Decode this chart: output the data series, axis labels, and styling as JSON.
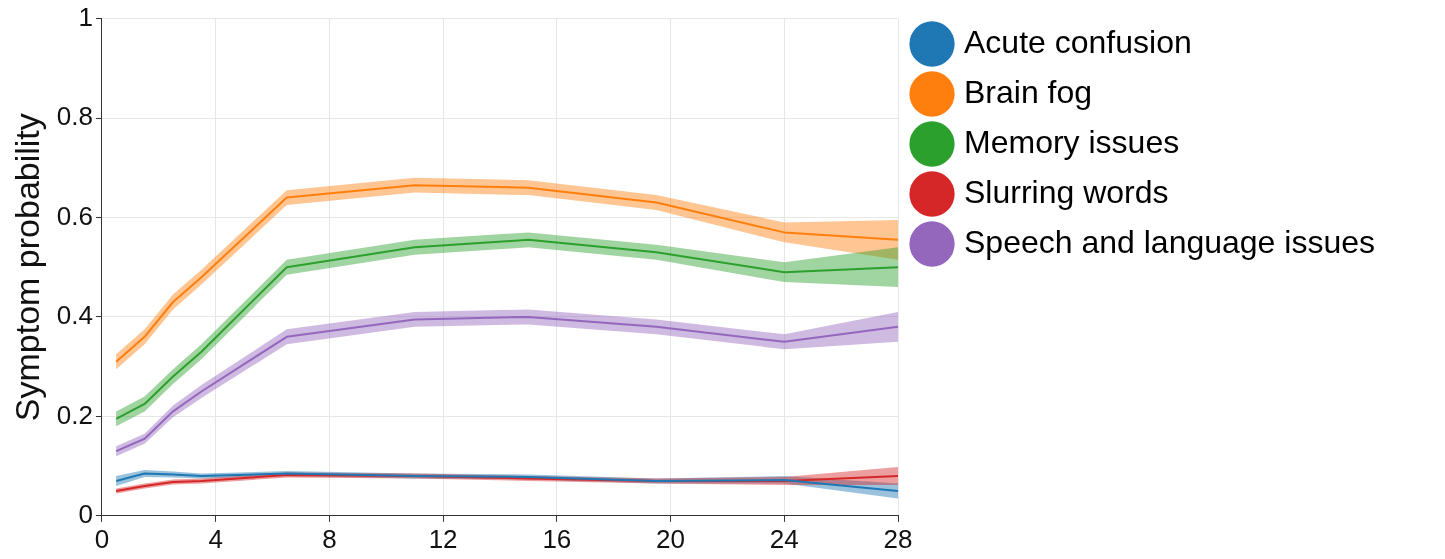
{
  "chart_data": {
    "type": "line",
    "ylabel": "Symptom probability",
    "x": [
      0.5,
      1.5,
      2.5,
      3.5,
      6.5,
      11,
      15,
      19.5,
      24,
      28
    ],
    "series": [
      {
        "name": "Acute confusion",
        "color": "#1f77b4",
        "values": [
          0.07,
          0.085,
          0.083,
          0.08,
          0.085,
          0.08,
          0.078,
          0.07,
          0.072,
          0.05
        ],
        "lower": [
          0.06,
          0.078,
          0.077,
          0.075,
          0.08,
          0.075,
          0.073,
          0.065,
          0.065,
          0.035
        ],
        "upper": [
          0.08,
          0.092,
          0.089,
          0.085,
          0.09,
          0.085,
          0.083,
          0.075,
          0.08,
          0.065
        ]
      },
      {
        "name": "Brain fog",
        "color": "#ff7f0e",
        "values": [
          0.31,
          0.36,
          0.43,
          0.48,
          0.64,
          0.665,
          0.66,
          0.63,
          0.57,
          0.555
        ],
        "lower": [
          0.295,
          0.345,
          0.415,
          0.465,
          0.625,
          0.65,
          0.645,
          0.615,
          0.55,
          0.515
        ],
        "upper": [
          0.325,
          0.375,
          0.445,
          0.495,
          0.655,
          0.68,
          0.675,
          0.645,
          0.59,
          0.595
        ]
      },
      {
        "name": "Memory issues",
        "color": "#2ca02c",
        "values": [
          0.195,
          0.225,
          0.28,
          0.33,
          0.5,
          0.54,
          0.555,
          0.53,
          0.49,
          0.5
        ],
        "lower": [
          0.18,
          0.21,
          0.265,
          0.315,
          0.485,
          0.525,
          0.54,
          0.515,
          0.47,
          0.46
        ],
        "upper": [
          0.21,
          0.24,
          0.295,
          0.345,
          0.515,
          0.555,
          0.57,
          0.545,
          0.51,
          0.54
        ]
      },
      {
        "name": "Slurring words",
        "color": "#d62728",
        "values": [
          0.05,
          0.06,
          0.068,
          0.07,
          0.082,
          0.08,
          0.075,
          0.07,
          0.07,
          0.08
        ],
        "lower": [
          0.045,
          0.055,
          0.063,
          0.065,
          0.077,
          0.075,
          0.07,
          0.065,
          0.062,
          0.062
        ],
        "upper": [
          0.055,
          0.065,
          0.073,
          0.075,
          0.087,
          0.085,
          0.08,
          0.075,
          0.078,
          0.098
        ]
      },
      {
        "name": "Speech and language issues",
        "color": "#9467bd",
        "values": [
          0.13,
          0.155,
          0.21,
          0.25,
          0.36,
          0.395,
          0.4,
          0.38,
          0.35,
          0.38
        ],
        "lower": [
          0.12,
          0.145,
          0.198,
          0.237,
          0.345,
          0.38,
          0.385,
          0.365,
          0.335,
          0.35
        ],
        "upper": [
          0.14,
          0.165,
          0.222,
          0.263,
          0.375,
          0.41,
          0.415,
          0.395,
          0.365,
          0.41
        ]
      }
    ],
    "xlim": [
      0,
      28
    ],
    "xticks": [
      0,
      4,
      8,
      12,
      16,
      20,
      24,
      28
    ],
    "ylim": [
      0,
      1
    ],
    "yticks": [
      0,
      0.2,
      0.4,
      0.6,
      0.8,
      1
    ],
    "grid": true,
    "legend": "right",
    "marker": "none",
    "line_style": "solid"
  }
}
